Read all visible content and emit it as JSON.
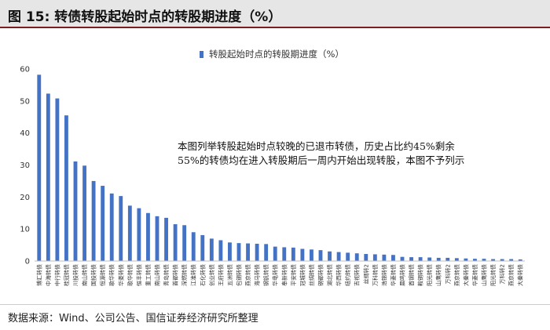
{
  "header": {
    "figure_title": "图 15:  转债转股起始时点的转股期进度（%）"
  },
  "annotation": "本图列举转股起始时点较晚的已退市转债，历史占比约45%剩余55%的转债均在进入转股期后一周内开始出现转股，本图不予列示",
  "source": "数据来源：Wind、公司公告、国信证券经济研究所整理",
  "colors": {
    "bar": "#4472c4",
    "header_bg": "#e6e6e6",
    "header_rule": "#7a1e1e"
  },
  "chart_data": {
    "type": "bar",
    "title": "转股起始时点的转股期进度（%）",
    "xlabel": "",
    "ylabel": "",
    "ylim": [
      0,
      60
    ],
    "yticks": [
      0,
      10,
      20,
      30,
      40,
      50,
      60
    ],
    "legend": "top-center",
    "series": [
      {
        "name": "转股起始时点的转股期进度（%）",
        "values": [
          58.2,
          52.3,
          50.8,
          45.5,
          31.1,
          29.8,
          25.0,
          23.5,
          21.1,
          20.3,
          17.3,
          16.5,
          15.0,
          14.0,
          13.5,
          11.5,
          11.2,
          9.0,
          8.1,
          7.0,
          6.5,
          5.8,
          5.6,
          5.5,
          5.4,
          5.3,
          4.5,
          4.3,
          4.2,
          3.8,
          3.6,
          3.4,
          3.0,
          2.8,
          2.6,
          2.4,
          2.2,
          2.1,
          2.0,
          1.9,
          1.3,
          1.2,
          1.2,
          1.1,
          1.0,
          1.0,
          0.9,
          0.8,
          0.7,
          0.7,
          0.6,
          0.6,
          0.6,
          0.5
        ]
      }
    ],
    "categories": [
      "博汇转债",
      "中海转债",
      "中行转债",
      "桂冠转债",
      "川投转债",
      "南山转债",
      "国投转债",
      "恒源转债",
      "歌华转债",
      "华菱转债",
      "歌华转债",
      "恒丰转债",
      "重工转债",
      "南山转债",
      "青岛转债",
      "首都转债",
      "深燃转债",
      "江淮转债",
      "石化转债",
      "创业转债",
      "王府转债",
      "五洲转债",
      "包钢转债",
      "燕京转债",
      "海马转债",
      "钢钒转债",
      "华电转债",
      "奉新转债",
      "平安转债",
      "冠城转债",
      "丝绸转债",
      "钢都转债",
      "湖北转债",
      "华西转债",
      "纽约转债",
      "吉视转债",
      "丝绸转2",
      "万科转债",
      "浩锦转债",
      "华菱转债",
      "晨鸣转债",
      "首钢转债",
      "鞍钢转债",
      "阳光转债",
      "山鹰转债",
      "万科转2",
      "燕京转债",
      "大秦转债",
      "华菱转债",
      "山鹰转债",
      "阳光转债",
      "万科转2",
      "燕京转债",
      "大秦转债"
    ]
  }
}
